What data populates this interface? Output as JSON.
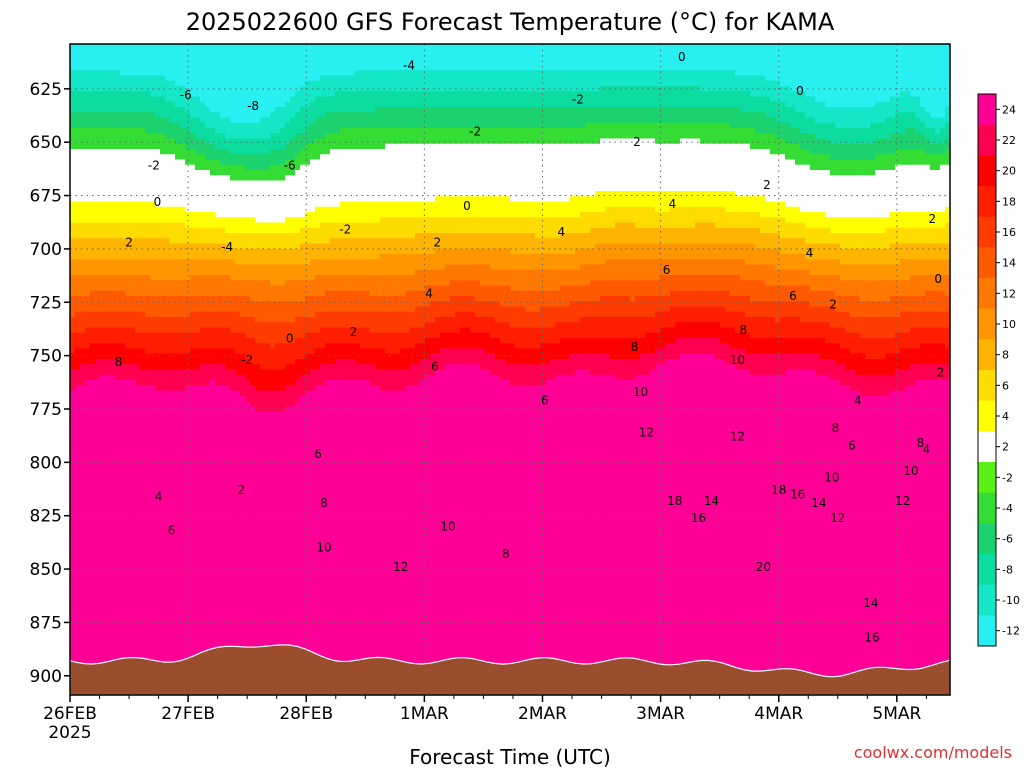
{
  "chart_data": {
    "type": "heatmap",
    "title": "2025022600 GFS Forecast Temperature (°C) for KAMA",
    "xlabel": "Forecast Time (UTC)",
    "x_tick_labels": [
      "26FEB",
      "27FEB",
      "28FEB",
      "1MAR",
      "2MAR",
      "3MAR",
      "4MAR",
      "5MAR"
    ],
    "x_year_label": "2025",
    "x_range_days": [
      0,
      7.45
    ],
    "y_ticks": [
      625,
      650,
      675,
      700,
      725,
      750,
      775,
      800,
      825,
      850,
      875,
      900
    ],
    "y_tick_labels": [
      "625",
      "650",
      "675",
      "700",
      "725",
      "750",
      "775",
      "800",
      "825",
      "850",
      "875",
      "900"
    ],
    "y_range_hpa": [
      604,
      909
    ],
    "y_axis": "pressure (hPa), increasing downward",
    "colorbar_levels": [
      -12,
      -10,
      -8,
      -6,
      -4,
      -2,
      2,
      4,
      6,
      8,
      10,
      12,
      14,
      16,
      18,
      20,
      22,
      24
    ],
    "colorbar_tick_labels": [
      "-12",
      "-10",
      "-8",
      "-6",
      "-4",
      "-2",
      "2",
      "4",
      "6",
      "8",
      "10",
      "12",
      "14",
      "16",
      "18",
      "20",
      "22",
      "24"
    ],
    "colorbar_colors": [
      "#28f0f0",
      "#14e6c8",
      "#0ddca0",
      "#1bd26e",
      "#34dc34",
      "#5af014",
      "#ffffff",
      "#ffff00",
      "#ffdc00",
      "#ffb400",
      "#ff9600",
      "#ff7800",
      "#ff5a00",
      "#ff3c00",
      "#ff1e00",
      "#ff0000",
      "#ff0050",
      "#ff0096"
    ],
    "freezing_line_color": "#cc1177",
    "ground_color": "#9a4e2e",
    "grid": true,
    "legend": "colorbar, right",
    "contour_labels": [
      {
        "text": "-4",
        "day": 2.87,
        "p": 614
      },
      {
        "text": "-6",
        "day": 0.98,
        "p": 628
      },
      {
        "text": "-8",
        "day": 1.55,
        "p": 633
      },
      {
        "text": "-6",
        "day": 1.86,
        "p": 661
      },
      {
        "text": "-2",
        "day": 0.71,
        "p": 661
      },
      {
        "text": "-4",
        "day": 1.33,
        "p": 699
      },
      {
        "text": "-2",
        "day": 1.5,
        "p": 752
      },
      {
        "text": "-2",
        "day": 2.33,
        "p": 691
      },
      {
        "text": "-2",
        "day": 3.43,
        "p": 645
      },
      {
        "text": "-2",
        "day": 4.3,
        "p": 630
      },
      {
        "text": "0",
        "day": 0.74,
        "p": 678
      },
      {
        "text": "0",
        "day": 1.86,
        "p": 742
      },
      {
        "text": "0",
        "day": 3.36,
        "p": 680
      },
      {
        "text": "0",
        "day": 5.18,
        "p": 610
      },
      {
        "text": "0",
        "day": 6.18,
        "p": 626
      },
      {
        "text": "0",
        "day": 7.35,
        "p": 714
      },
      {
        "text": "2",
        "day": 0.5,
        "p": 697
      },
      {
        "text": "2",
        "day": 1.45,
        "p": 813
      },
      {
        "text": "2",
        "day": 2.4,
        "p": 739
      },
      {
        "text": "2",
        "day": 3.11,
        "p": 697
      },
      {
        "text": "2",
        "day": 4.8,
        "p": 650
      },
      {
        "text": "2",
        "day": 5.9,
        "p": 670
      },
      {
        "text": "2",
        "day": 6.46,
        "p": 726
      },
      {
        "text": "2",
        "day": 7.3,
        "p": 686
      },
      {
        "text": "2",
        "day": 7.37,
        "p": 758
      },
      {
        "text": "4",
        "day": 0.75,
        "p": 816
      },
      {
        "text": "4",
        "day": 3.04,
        "p": 721
      },
      {
        "text": "4",
        "day": 4.16,
        "p": 692
      },
      {
        "text": "4",
        "day": 5.1,
        "p": 679
      },
      {
        "text": "4",
        "day": 6.26,
        "p": 702
      },
      {
        "text": "4",
        "day": 6.67,
        "p": 771
      },
      {
        "text": "4",
        "day": 7.25,
        "p": 794
      },
      {
        "text": "6",
        "day": 0.86,
        "p": 832
      },
      {
        "text": "6",
        "day": 2.1,
        "p": 796
      },
      {
        "text": "6",
        "day": 3.09,
        "p": 755
      },
      {
        "text": "6",
        "day": 4.02,
        "p": 771
      },
      {
        "text": "6",
        "day": 5.05,
        "p": 710
      },
      {
        "text": "6",
        "day": 6.12,
        "p": 722
      },
      {
        "text": "6",
        "day": 6.62,
        "p": 792
      },
      {
        "text": "8",
        "day": 0.41,
        "p": 753
      },
      {
        "text": "8",
        "day": 2.15,
        "p": 819
      },
      {
        "text": "8",
        "day": 3.69,
        "p": 843
      },
      {
        "text": "8",
        "day": 4.78,
        "p": 746
      },
      {
        "text": "8",
        "day": 5.7,
        "p": 738
      },
      {
        "text": "8",
        "day": 6.48,
        "p": 784
      },
      {
        "text": "8",
        "day": 7.2,
        "p": 791
      },
      {
        "text": "10",
        "day": 2.15,
        "p": 840
      },
      {
        "text": "10",
        "day": 3.2,
        "p": 830
      },
      {
        "text": "10",
        "day": 4.83,
        "p": 767
      },
      {
        "text": "10",
        "day": 5.65,
        "p": 752
      },
      {
        "text": "10",
        "day": 6.45,
        "p": 807
      },
      {
        "text": "10",
        "day": 7.12,
        "p": 804
      },
      {
        "text": "12",
        "day": 2.8,
        "p": 849
      },
      {
        "text": "12",
        "day": 4.88,
        "p": 786
      },
      {
        "text": "12",
        "day": 5.65,
        "p": 788
      },
      {
        "text": "12",
        "day": 6.5,
        "p": 826
      },
      {
        "text": "12",
        "day": 7.05,
        "p": 818
      },
      {
        "text": "14",
        "day": 5.43,
        "p": 818
      },
      {
        "text": "14",
        "day": 6.34,
        "p": 819
      },
      {
        "text": "14",
        "day": 6.78,
        "p": 866
      },
      {
        "text": "16",
        "day": 5.32,
        "p": 826
      },
      {
        "text": "16",
        "day": 6.16,
        "p": 815
      },
      {
        "text": "16",
        "day": 6.79,
        "p": 882
      },
      {
        "text": "18",
        "day": 5.12,
        "p": 818
      },
      {
        "text": "18",
        "day": 6.0,
        "p": 813
      },
      {
        "text": "20",
        "day": 5.87,
        "p": 849
      }
    ]
  },
  "credit": "coolwx.com/models"
}
